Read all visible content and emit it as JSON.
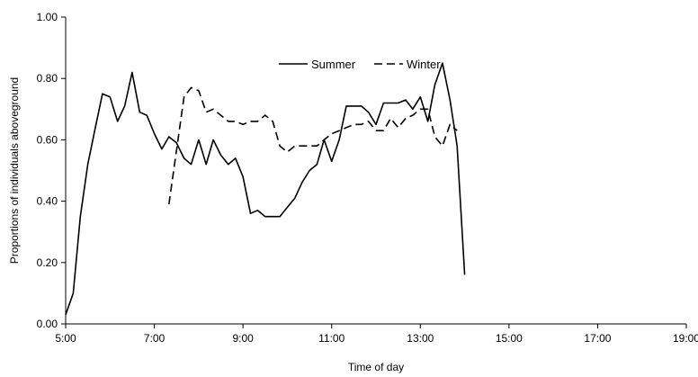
{
  "chart_data": {
    "type": "line",
    "xlabel": "Time of day",
    "ylabel": "Proportions of individuals aboveground",
    "xlim": [
      5,
      19
    ],
    "ylim": [
      0,
      1
    ],
    "x_ticks": [
      {
        "value": 5,
        "label": "5:00"
      },
      {
        "value": 7,
        "label": "7:00"
      },
      {
        "value": 9,
        "label": "9:00"
      },
      {
        "value": 11,
        "label": "11:00"
      },
      {
        "value": 13,
        "label": "13:00"
      },
      {
        "value": 15,
        "label": "15:00"
      },
      {
        "value": 17,
        "label": "17:00"
      },
      {
        "value": 19,
        "label": "19:00"
      }
    ],
    "y_ticks": [
      {
        "value": 0.0,
        "label": "0.00"
      },
      {
        "value": 0.2,
        "label": "0.20"
      },
      {
        "value": 0.4,
        "label": "0.40"
      },
      {
        "value": 0.6,
        "label": "0.60"
      },
      {
        "value": 0.8,
        "label": "0.80"
      },
      {
        "value": 1.0,
        "label": "1.00"
      }
    ],
    "legend_position": "top-center",
    "grid": false,
    "series": [
      {
        "name": "Summer",
        "style": "solid",
        "color": "#000000",
        "points": [
          [
            5.0,
            0.03
          ],
          [
            5.17,
            0.1
          ],
          [
            5.33,
            0.35
          ],
          [
            5.5,
            0.52
          ],
          [
            5.67,
            0.64
          ],
          [
            5.83,
            0.75
          ],
          [
            6.0,
            0.74
          ],
          [
            6.17,
            0.66
          ],
          [
            6.33,
            0.71
          ],
          [
            6.5,
            0.82
          ],
          [
            6.67,
            0.69
          ],
          [
            6.83,
            0.68
          ],
          [
            7.0,
            0.62
          ],
          [
            7.17,
            0.57
          ],
          [
            7.33,
            0.61
          ],
          [
            7.5,
            0.59
          ],
          [
            7.67,
            0.54
          ],
          [
            7.83,
            0.52
          ],
          [
            8.0,
            0.6
          ],
          [
            8.17,
            0.52
          ],
          [
            8.33,
            0.6
          ],
          [
            8.5,
            0.55
          ],
          [
            8.67,
            0.52
          ],
          [
            8.83,
            0.54
          ],
          [
            9.0,
            0.48
          ],
          [
            9.17,
            0.36
          ],
          [
            9.33,
            0.37
          ],
          [
            9.5,
            0.35
          ],
          [
            9.67,
            0.35
          ],
          [
            9.83,
            0.35
          ],
          [
            10.0,
            0.38
          ],
          [
            10.17,
            0.41
          ],
          [
            10.33,
            0.46
          ],
          [
            10.5,
            0.5
          ],
          [
            10.67,
            0.52
          ],
          [
            10.83,
            0.6
          ],
          [
            11.0,
            0.53
          ],
          [
            11.17,
            0.6
          ],
          [
            11.33,
            0.71
          ],
          [
            11.5,
            0.71
          ],
          [
            11.67,
            0.71
          ],
          [
            11.83,
            0.69
          ],
          [
            12.0,
            0.65
          ],
          [
            12.17,
            0.72
          ],
          [
            12.33,
            0.72
          ],
          [
            12.5,
            0.72
          ],
          [
            12.67,
            0.73
          ],
          [
            12.83,
            0.7
          ],
          [
            13.0,
            0.74
          ],
          [
            13.17,
            0.66
          ],
          [
            13.33,
            0.78
          ],
          [
            13.5,
            0.85
          ],
          [
            13.67,
            0.73
          ],
          [
            13.83,
            0.58
          ],
          [
            14.0,
            0.16
          ]
        ]
      },
      {
        "name": "Winter",
        "style": "dashed",
        "color": "#000000",
        "points": [
          [
            7.33,
            0.39
          ],
          [
            7.67,
            0.74
          ],
          [
            7.83,
            0.77
          ],
          [
            8.0,
            0.76
          ],
          [
            8.17,
            0.69
          ],
          [
            8.33,
            0.7
          ],
          [
            8.5,
            0.68
          ],
          [
            8.67,
            0.66
          ],
          [
            8.83,
            0.66
          ],
          [
            9.0,
            0.65
          ],
          [
            9.17,
            0.66
          ],
          [
            9.33,
            0.66
          ],
          [
            9.5,
            0.68
          ],
          [
            9.67,
            0.66
          ],
          [
            9.83,
            0.58
          ],
          [
            10.0,
            0.56
          ],
          [
            10.17,
            0.58
          ],
          [
            10.33,
            0.58
          ],
          [
            10.5,
            0.58
          ],
          [
            10.67,
            0.58
          ],
          [
            10.83,
            0.6
          ],
          [
            11.0,
            0.62
          ],
          [
            11.17,
            0.63
          ],
          [
            11.33,
            0.64
          ],
          [
            11.5,
            0.65
          ],
          [
            11.67,
            0.65
          ],
          [
            11.83,
            0.66
          ],
          [
            12.0,
            0.63
          ],
          [
            12.17,
            0.63
          ],
          [
            12.33,
            0.67
          ],
          [
            12.5,
            0.64
          ],
          [
            12.67,
            0.67
          ],
          [
            12.83,
            0.68
          ],
          [
            13.0,
            0.7
          ],
          [
            13.17,
            0.7
          ],
          [
            13.33,
            0.61
          ],
          [
            13.5,
            0.58
          ],
          [
            13.67,
            0.65
          ],
          [
            13.83,
            0.63
          ]
        ]
      }
    ]
  }
}
